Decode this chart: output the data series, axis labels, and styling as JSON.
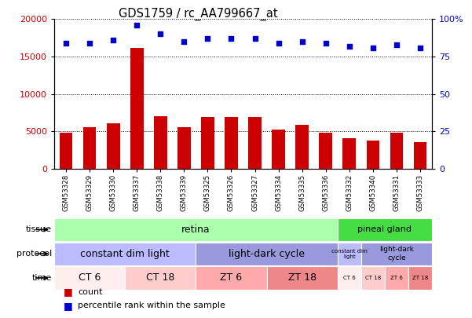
{
  "title": "GDS1759 / rc_AA799667_at",
  "samples": [
    "GSM53328",
    "GSM53329",
    "GSM53330",
    "GSM53337",
    "GSM53338",
    "GSM53339",
    "GSM53325",
    "GSM53326",
    "GSM53327",
    "GSM53334",
    "GSM53335",
    "GSM53336",
    "GSM53332",
    "GSM53340",
    "GSM53331",
    "GSM53333"
  ],
  "counts": [
    4800,
    5600,
    6100,
    16200,
    7000,
    5600,
    6900,
    6900,
    6900,
    5300,
    5900,
    4800,
    4100,
    3800,
    4800,
    3600
  ],
  "percentile_ranks": [
    84,
    84,
    86,
    96,
    90,
    85,
    87,
    87,
    87,
    84,
    85,
    84,
    82,
    81,
    83,
    81
  ],
  "bar_color": "#cc0000",
  "dot_color": "#0000cc",
  "ylim_left": [
    0,
    20000
  ],
  "ylim_right": [
    0,
    100
  ],
  "yticks_left": [
    0,
    5000,
    10000,
    15000,
    20000
  ],
  "yticks_right": [
    0,
    25,
    50,
    75,
    100
  ],
  "tissue_retina_color": "#aaffaa",
  "tissue_pineal_color": "#44dd44",
  "protocol_cdl_color": "#bbbbff",
  "protocol_ldc_color": "#9999dd",
  "time_ct6_color": "#ffeeee",
  "time_ct18_color": "#ffcccc",
  "time_zt6_color": "#ffaaaa",
  "time_zt18_color": "#ee8888",
  "bg_color": "#ffffff",
  "grid_color": "#000000",
  "border_color": "#888888"
}
